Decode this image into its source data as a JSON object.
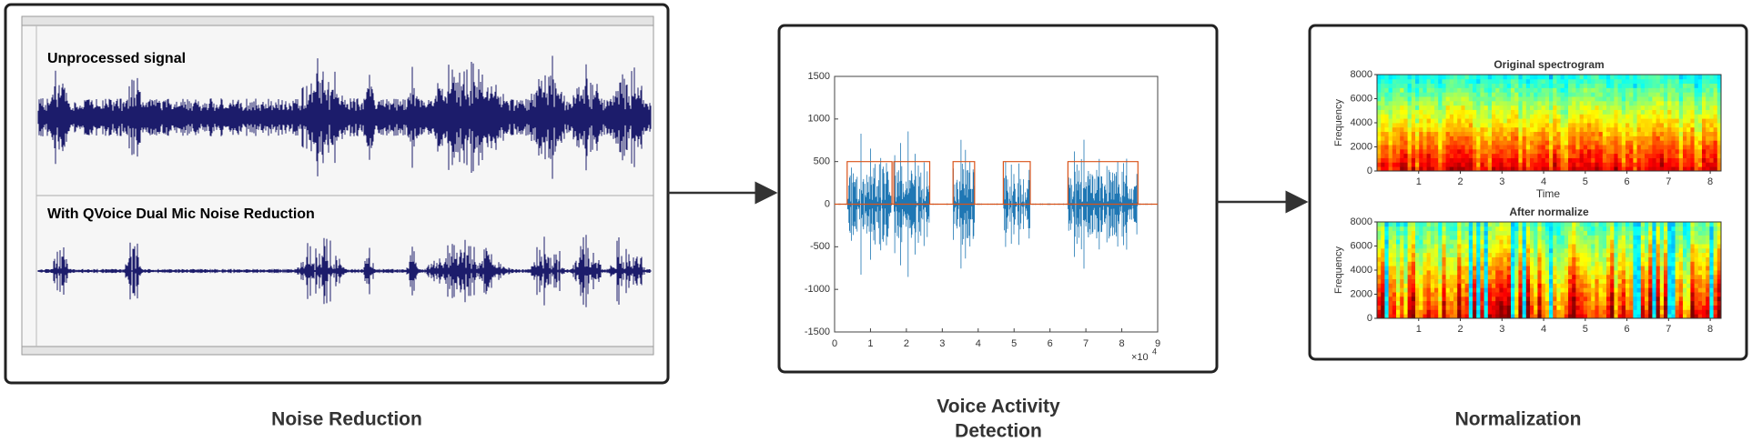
{
  "panels": [
    {
      "caption": "Noise Reduction",
      "signals": [
        "Unprocessed signal",
        "With QVoice Dual Mic Noise Reduction"
      ]
    },
    {
      "caption_lines": [
        "Voice Activity",
        "Detection"
      ],
      "plot": {
        "xlim": [
          0,
          9
        ],
        "xticks": [
          0,
          1,
          2,
          3,
          4,
          5,
          6,
          7,
          8,
          9
        ],
        "ylim": [
          -1500,
          1500
        ],
        "yticks": [
          1500,
          1000,
          500,
          0,
          -500,
          -1000,
          -1500
        ],
        "x_multiplier": "×10",
        "x_exponent": "4",
        "segment_level": 500,
        "segments": [
          [
            0.35,
            1.6
          ],
          [
            1.65,
            2.65
          ],
          [
            3.3,
            3.9
          ],
          [
            4.7,
            5.45
          ],
          [
            6.5,
            8.45
          ]
        ]
      }
    },
    {
      "caption": "Normalization",
      "ylabel": "Frequency",
      "xlabel": "Time",
      "titles": [
        "Original spectrogram",
        "After normalize"
      ],
      "ylim": [
        0,
        8000
      ],
      "yticks": [
        0,
        2000,
        4000,
        6000,
        8000
      ],
      "xlim": [
        0,
        8.26
      ],
      "xticks": [
        1,
        2,
        3,
        4,
        5,
        6,
        7,
        8
      ]
    }
  ]
}
